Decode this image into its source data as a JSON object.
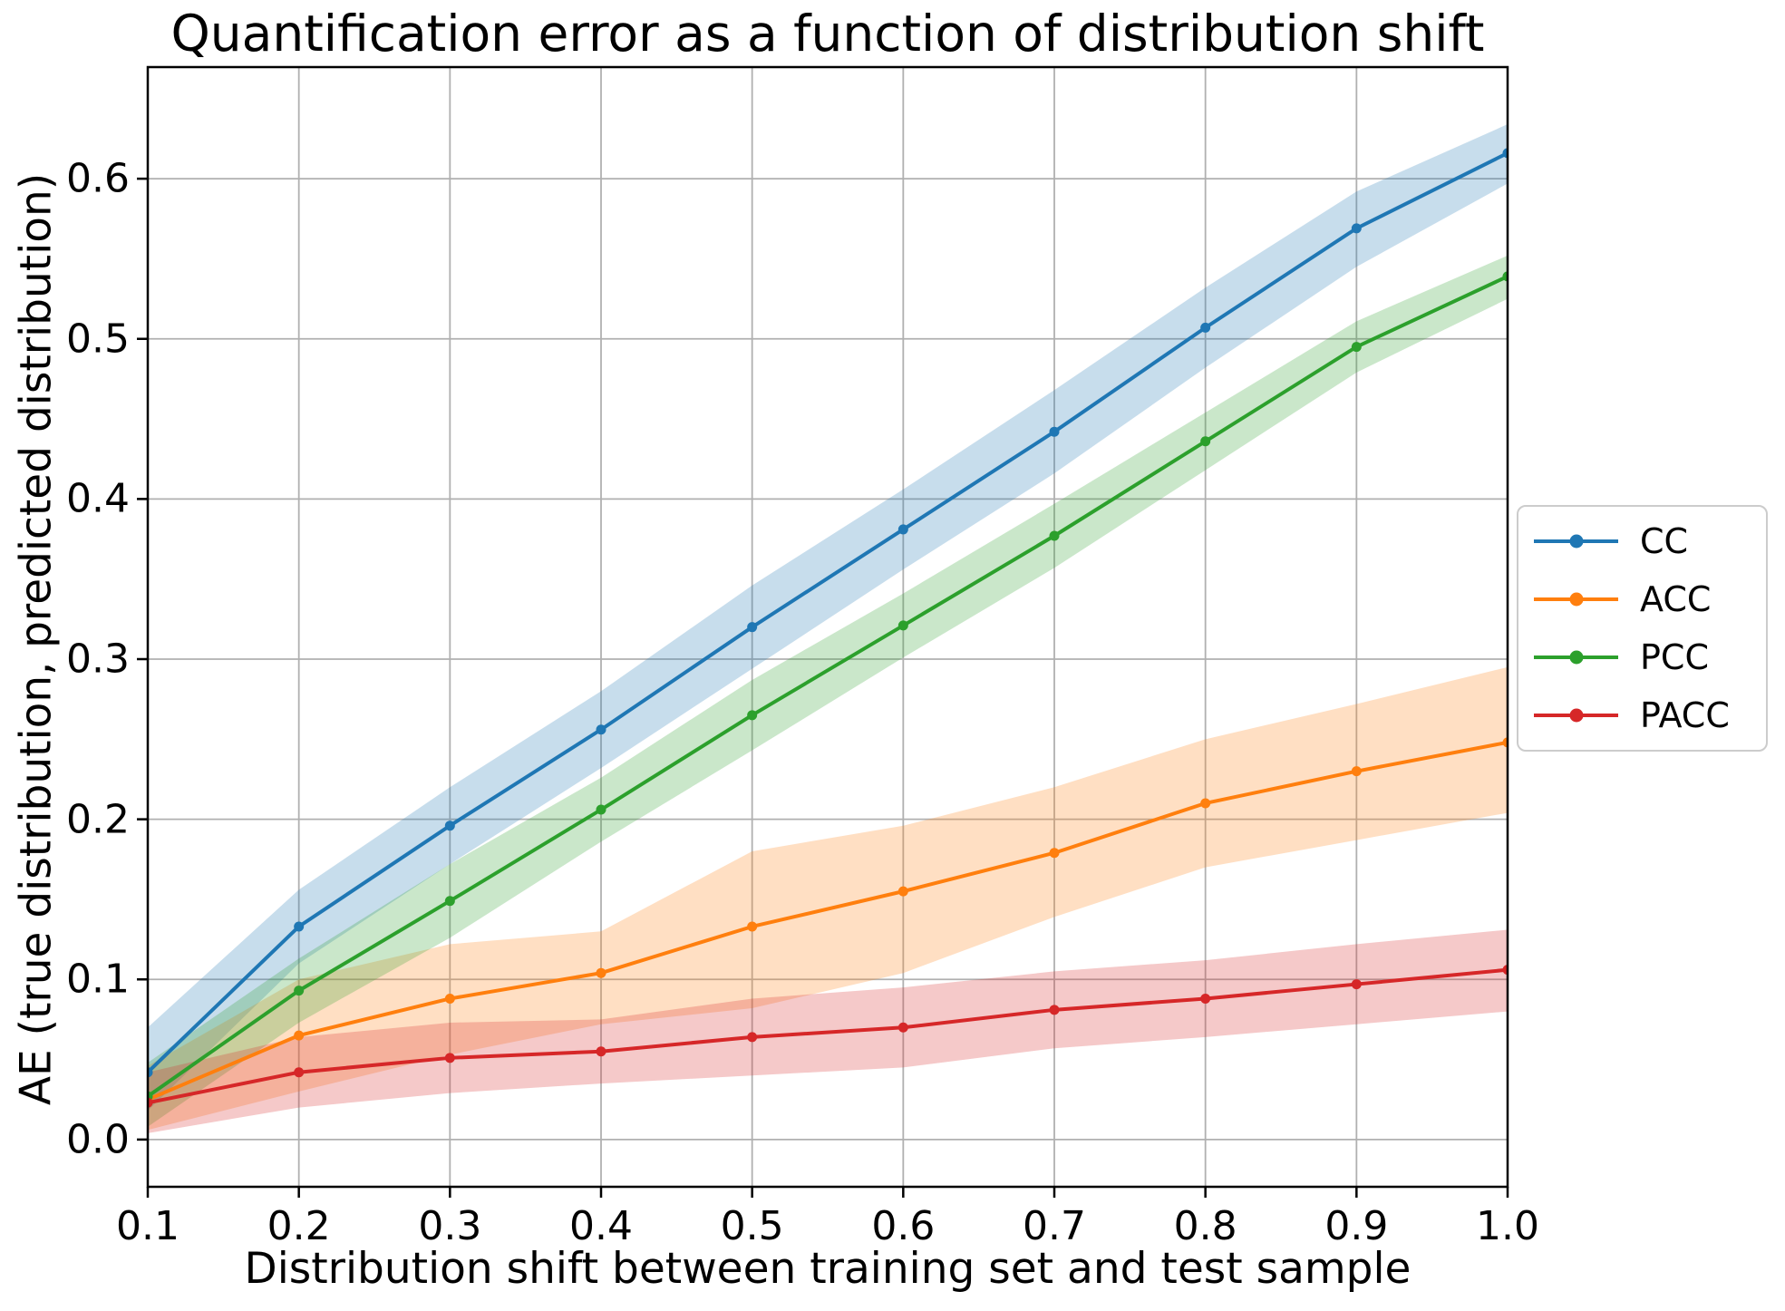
{
  "chart_data": {
    "type": "line",
    "title": "Quantification error as a function of distribution shift",
    "xlabel": "Distribution shift between training set and test sample",
    "ylabel": "AE (true distribution, predicted distribution)",
    "x": [
      0.1,
      0.2,
      0.3,
      0.4,
      0.5,
      0.6,
      0.7,
      0.8,
      0.9,
      1.0
    ],
    "xlim": [
      0.1,
      1.0
    ],
    "ylim": [
      -0.0295,
      0.6697
    ],
    "xtick_labels": [
      "0.1",
      "0.2",
      "0.3",
      "0.4",
      "0.5",
      "0.6",
      "0.7",
      "0.8",
      "0.9",
      "1.0"
    ],
    "ytick_values": [
      0.0,
      0.1,
      0.2,
      0.3,
      0.4,
      0.5,
      0.6
    ],
    "ytick_labels": [
      "0.0",
      "0.1",
      "0.2",
      "0.3",
      "0.4",
      "0.5",
      "0.6"
    ],
    "grid": true,
    "grid_color": "#b0b0b0",
    "spine_color": "#000000",
    "band_alpha": 0.25,
    "legend_position": "right-outside",
    "series": [
      {
        "name": "CC",
        "color": "#1f77b4",
        "values": [
          0.042,
          0.133,
          0.196,
          0.256,
          0.32,
          0.381,
          0.442,
          0.507,
          0.569,
          0.616
        ],
        "band_lower": [
          0.018,
          0.11,
          0.172,
          0.232,
          0.294,
          0.356,
          0.416,
          0.482,
          0.545,
          0.597
        ],
        "band_upper": [
          0.07,
          0.156,
          0.22,
          0.28,
          0.346,
          0.406,
          0.468,
          0.532,
          0.592,
          0.634
        ]
      },
      {
        "name": "ACC",
        "color": "#ff7f0e",
        "values": [
          0.025,
          0.065,
          0.088,
          0.104,
          0.133,
          0.155,
          0.179,
          0.21,
          0.23,
          0.248
        ],
        "band_lower": [
          0.006,
          0.03,
          0.053,
          0.072,
          0.082,
          0.104,
          0.139,
          0.17,
          0.187,
          0.204
        ],
        "band_upper": [
          0.046,
          0.1,
          0.122,
          0.13,
          0.18,
          0.196,
          0.22,
          0.25,
          0.272,
          0.295
        ]
      },
      {
        "name": "PCC",
        "color": "#2ca02c",
        "values": [
          0.027,
          0.093,
          0.149,
          0.206,
          0.265,
          0.321,
          0.377,
          0.436,
          0.495,
          0.539
        ],
        "band_lower": [
          0.008,
          0.073,
          0.126,
          0.186,
          0.243,
          0.301,
          0.357,
          0.418,
          0.479,
          0.525
        ],
        "band_upper": [
          0.048,
          0.113,
          0.172,
          0.226,
          0.287,
          0.341,
          0.397,
          0.454,
          0.511,
          0.552
        ]
      },
      {
        "name": "PACC",
        "color": "#d62728",
        "values": [
          0.023,
          0.042,
          0.051,
          0.055,
          0.064,
          0.07,
          0.081,
          0.088,
          0.097,
          0.106
        ],
        "band_lower": [
          0.004,
          0.02,
          0.029,
          0.035,
          0.04,
          0.045,
          0.057,
          0.064,
          0.072,
          0.08
        ],
        "band_upper": [
          0.042,
          0.064,
          0.073,
          0.075,
          0.088,
          0.095,
          0.105,
          0.112,
          0.122,
          0.131
        ]
      }
    ]
  }
}
